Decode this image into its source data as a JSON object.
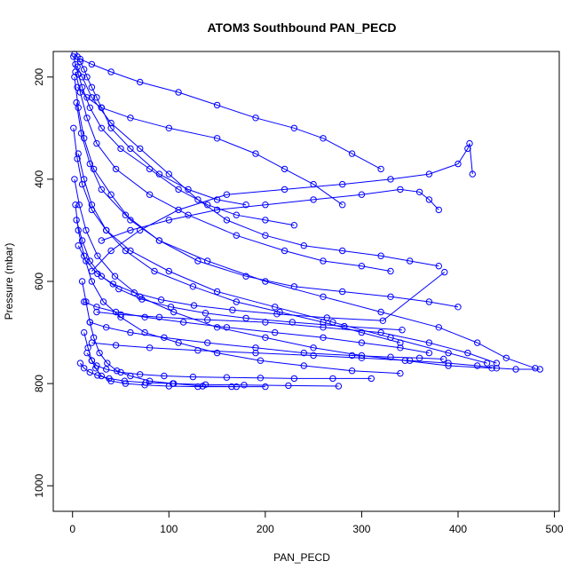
{
  "chart_data": {
    "type": "scatter",
    "title": "ATOM3 Southbound PAN_PECD",
    "xlabel": "PAN_PECD",
    "ylabel": "Pressure (mbar)",
    "xlim": [
      -20,
      505
    ],
    "ylim": [
      1050,
      150
    ],
    "y_reversed": true,
    "xticks": [
      0,
      100,
      200,
      300,
      400,
      500
    ],
    "yticks": [
      200,
      400,
      600,
      800,
      1000
    ],
    "grid": false,
    "legend": "none",
    "color": "#0000ff",
    "marker": "open-circle",
    "series": [
      {
        "x": [
          2,
          5,
          8,
          12,
          15,
          20,
          25,
          30,
          40,
          60,
          90,
          120,
          150,
          180
        ],
        "y": [
          155,
          160,
          170,
          185,
          200,
          220,
          240,
          260,
          300,
          340,
          390,
          420,
          440,
          450
        ]
      },
      {
        "x": [
          1,
          3,
          6,
          10,
          18,
          30,
          50,
          80,
          110,
          140,
          170,
          200,
          230
        ],
        "y": [
          160,
          175,
          195,
          220,
          260,
          300,
          340,
          380,
          420,
          450,
          470,
          480,
          490
        ]
      },
      {
        "x": [
          5,
          10,
          20,
          40,
          70,
          100,
          130,
          160,
          200,
          240,
          280,
          320,
          350,
          380
        ],
        "y": [
          180,
          200,
          240,
          290,
          340,
          390,
          440,
          480,
          510,
          530,
          540,
          550,
          560,
          570
        ]
      },
      {
        "x": [
          3,
          8,
          15,
          25,
          45,
          80,
          120,
          170,
          220,
          260,
          300,
          330
        ],
        "y": [
          190,
          230,
          280,
          330,
          380,
          430,
          470,
          510,
          540,
          560,
          570,
          580
        ]
      },
      {
        "x": [
          2,
          6,
          12,
          22,
          40,
          60,
          90,
          130,
          180,
          230,
          280,
          330,
          370,
          400
        ],
        "y": [
          200,
          260,
          320,
          380,
          430,
          480,
          520,
          560,
          590,
          610,
          620,
          630,
          640,
          650
        ]
      },
      {
        "x": [
          4,
          9,
          18,
          30,
          55,
          90,
          140,
          200,
          260,
          320,
          380,
          420,
          450,
          480
        ],
        "y": [
          250,
          310,
          370,
          420,
          470,
          520,
          560,
          600,
          630,
          660,
          690,
          720,
          750,
          770
        ]
      },
      {
        "x": [
          1,
          5,
          10,
          20,
          35,
          60,
          100,
          150,
          210,
          270,
          330,
          390,
          430
        ],
        "y": [
          300,
          360,
          410,
          460,
          500,
          540,
          580,
          620,
          650,
          680,
          710,
          740,
          760
        ]
      },
      {
        "x": [
          6,
          12,
          20,
          35,
          55,
          85,
          125,
          170,
          215,
          260,
          300,
          340
        ],
        "y": [
          350,
          400,
          450,
          500,
          540,
          580,
          610,
          640,
          660,
          680,
          700,
          720
        ]
      },
      {
        "x": [
          2,
          7,
          14,
          26,
          44,
          70,
          105,
          150,
          200,
          250,
          300,
          345,
          390,
          435
        ],
        "y": [
          400,
          450,
          500,
          550,
          590,
          630,
          660,
          690,
          710,
          730,
          745,
          755,
          765,
          770
        ]
      },
      {
        "x": [
          3,
          6,
          12,
          20,
          32,
          50,
          75,
          110,
          150,
          195,
          240,
          290,
          340
        ],
        "y": [
          450,
          500,
          550,
          600,
          640,
          670,
          700,
          720,
          740,
          755,
          765,
          775,
          780
        ]
      },
      {
        "x": [
          10,
          14,
          18,
          22,
          28,
          36,
          46,
          60,
          80,
          105,
          135,
          170
        ],
        "y": [
          600,
          640,
          680,
          710,
          740,
          760,
          775,
          785,
          795,
          800,
          805,
          806
        ]
      },
      {
        "x": [
          12,
          16,
          20,
          24,
          30,
          40,
          55,
          75,
          100,
          130,
          165,
          200
        ],
        "y": [
          700,
          730,
          755,
          770,
          785,
          795,
          800,
          803,
          805,
          806,
          806,
          806
        ]
      },
      {
        "x": [
          15,
          20,
          25,
          35,
          50,
          70,
          95,
          125,
          160,
          195,
          230,
          270,
          310
        ],
        "y": [
          740,
          755,
          765,
          772,
          778,
          782,
          785,
          787,
          788,
          789,
          790,
          790,
          790
        ]
      },
      {
        "x": [
          8,
          12,
          18,
          26,
          38,
          54,
          76,
          104,
          138,
          178,
          224,
          276
        ],
        "y": [
          760,
          770,
          778,
          784,
          790,
          795,
          798,
          800,
          802,
          803,
          804,
          805
        ]
      },
      {
        "x": [
          20,
          40,
          70,
          110,
          160,
          220,
          280,
          330,
          370,
          400,
          410,
          412,
          415
        ],
        "y": [
          580,
          540,
          500,
          460,
          430,
          420,
          410,
          400,
          390,
          370,
          340,
          330,
          390
        ]
      },
      {
        "x": [
          30,
          60,
          100,
          150,
          200,
          250,
          300,
          340,
          360,
          370,
          380
        ],
        "y": [
          520,
          500,
          480,
          460,
          450,
          440,
          430,
          420,
          425,
          440,
          460
        ]
      },
      {
        "x": [
          5,
          15,
          30,
          60,
          100,
          150,
          190,
          220,
          250,
          280
        ],
        "y": [
          220,
          240,
          260,
          280,
          300,
          320,
          350,
          380,
          410,
          450
        ]
      },
      {
        "x": [
          8,
          20,
          40,
          70,
          110,
          150,
          190,
          230,
          260,
          290,
          320
        ],
        "y": [
          165,
          175,
          190,
          210,
          230,
          255,
          280,
          300,
          320,
          350,
          380
        ]
      },
      {
        "x": [
          12,
          25,
          45,
          75,
          115,
          160,
          210,
          260,
          300,
          340,
          370
        ],
        "y": [
          640,
          650,
          660,
          670,
          680,
          690,
          700,
          710,
          720,
          730,
          740
        ]
      },
      {
        "x": [
          18,
          35,
          60,
          95,
          140,
          190,
          240,
          290,
          330,
          360,
          385
        ],
        "y": [
          680,
          690,
          700,
          710,
          720,
          730,
          740,
          745,
          748,
          750,
          752
        ]
      },
      {
        "x": [
          20,
          45,
          80,
          130,
          190,
          250,
          300,
          350,
          390,
          420,
          440,
          460,
          485
        ],
        "y": [
          720,
          725,
          730,
          735,
          740,
          745,
          750,
          755,
          760,
          765,
          770,
          772,
          772
        ]
      },
      {
        "x": [
          25,
          50,
          90,
          140,
          200,
          260,
          320,
          370,
          410,
          440
        ],
        "y": [
          660,
          665,
          670,
          675,
          680,
          690,
          700,
          720,
          740,
          760
        ]
      },
      {
        "x": [
          4,
          10,
          18,
          30,
          48,
          72,
          102,
          138,
          180,
          228,
          282,
          342
        ],
        "y": [
          480,
          520,
          560,
          590,
          615,
          635,
          650,
          662,
          672,
          680,
          688,
          695
        ]
      },
      {
        "x": [
          6,
          14,
          26,
          42,
          64,
          92,
          126,
          166,
          212,
          264,
          322,
          386
        ],
        "y": [
          530,
          560,
          585,
          605,
          622,
          636,
          647,
          656,
          664,
          671,
          677,
          582
        ]
      }
    ]
  }
}
